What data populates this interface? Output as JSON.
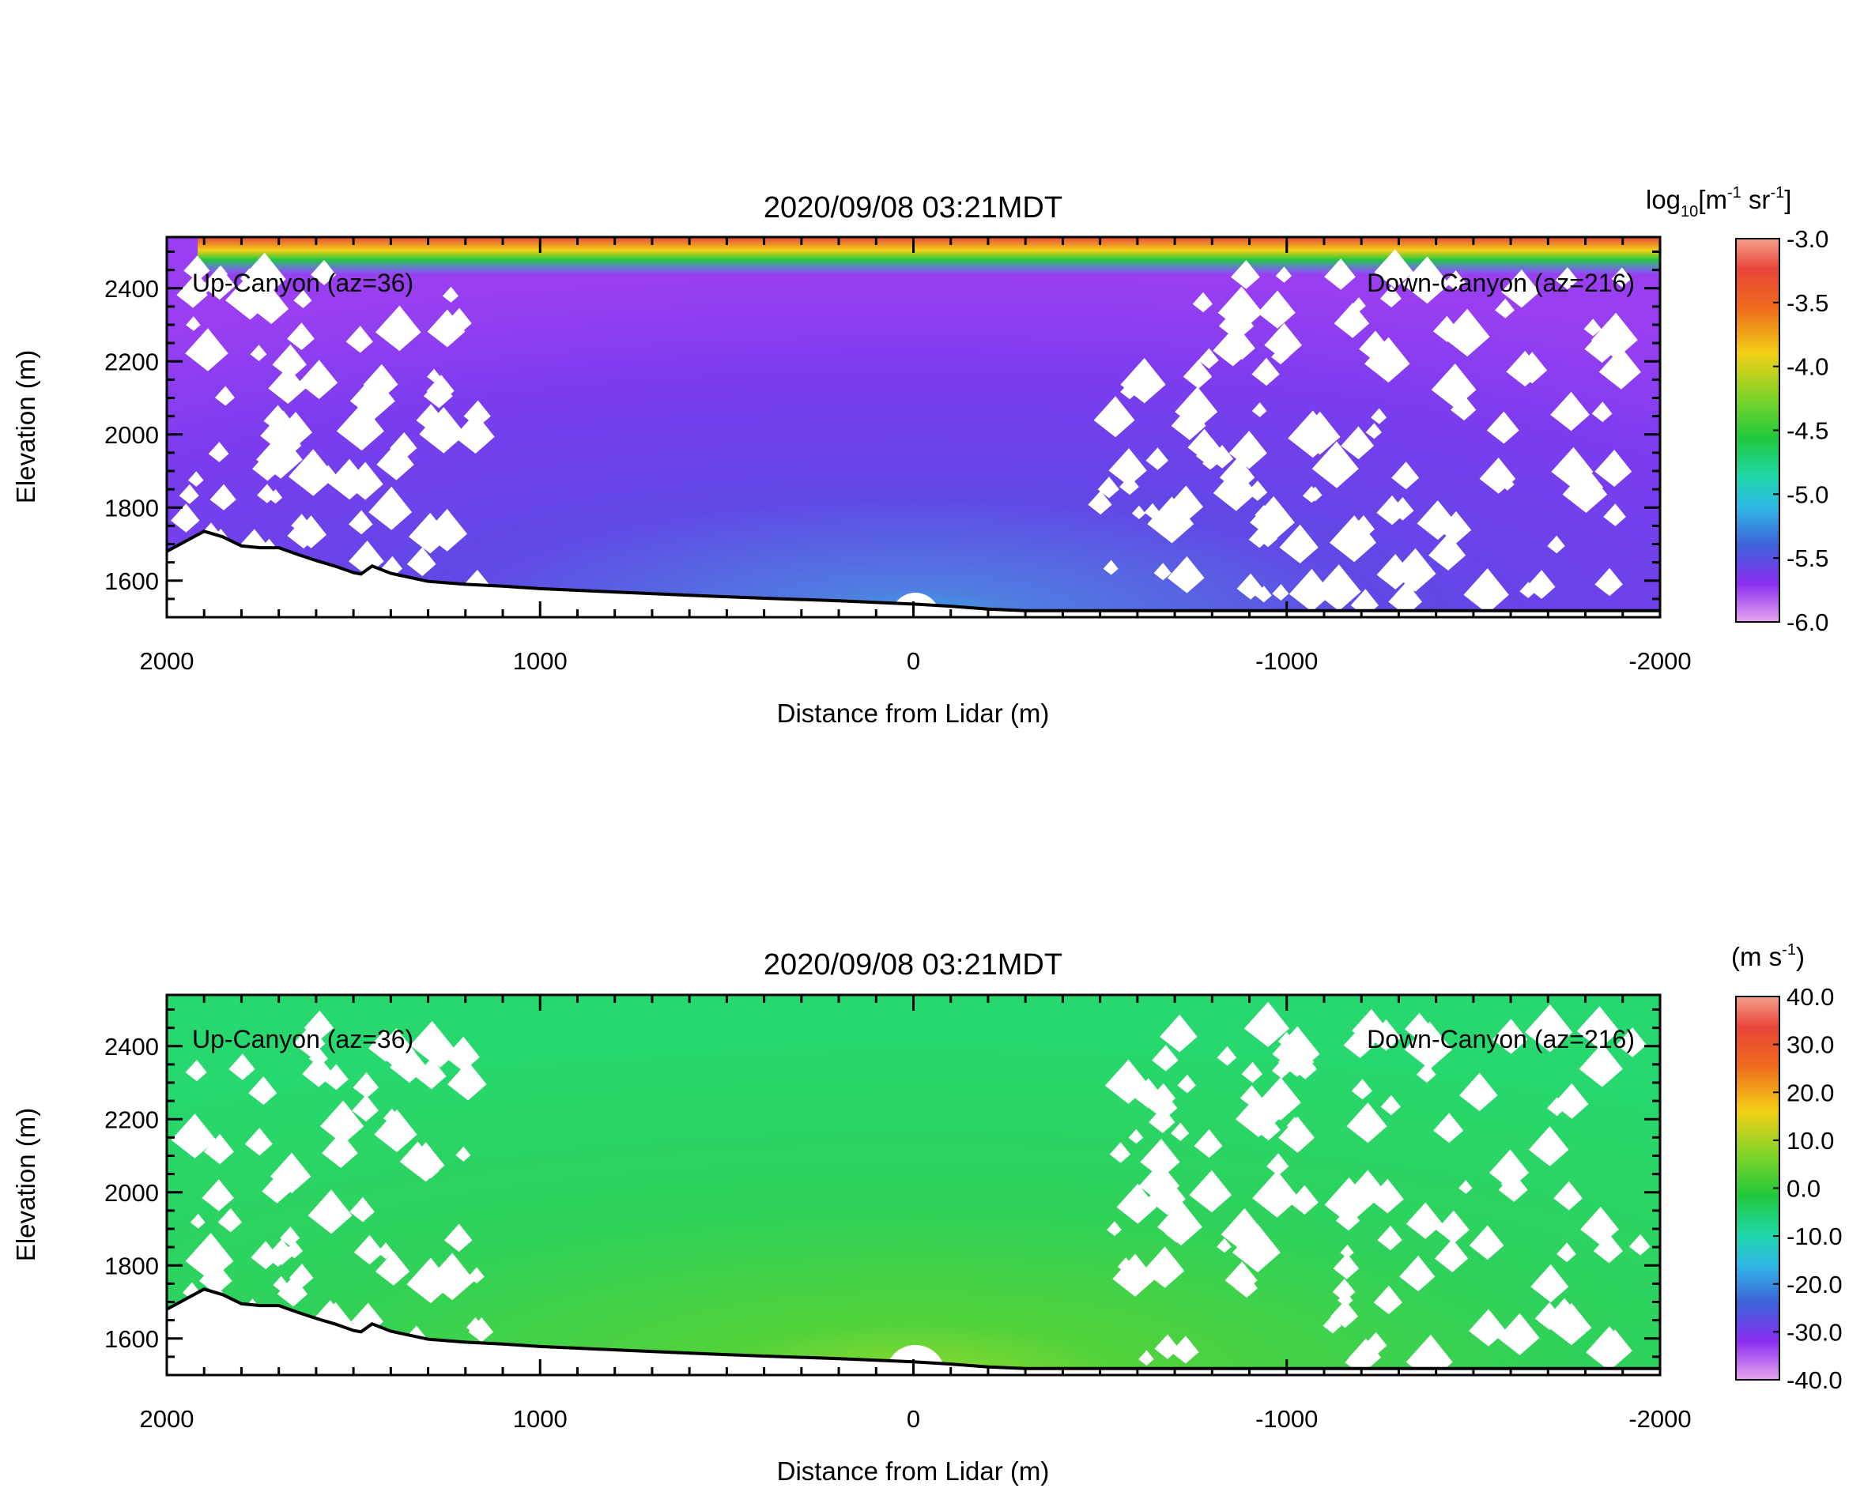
{
  "figure": {
    "background": "#ffffff"
  },
  "chart_data": [
    {
      "type": "heatmap",
      "title": "2020/09/08 03:21MDT",
      "xlabel": "Distance from Lidar (m)",
      "ylabel": "Elevation (m)",
      "xlim": [
        2000,
        -2000
      ],
      "ylim": [
        1500,
        2540
      ],
      "x_ticks": [
        2000,
        1000,
        0,
        -1000,
        -2000
      ],
      "x_tick_labels": [
        "2000",
        "1000",
        "0",
        "-1000",
        "-2000"
      ],
      "y_ticks": [
        1600,
        1800,
        2000,
        2200,
        2400
      ],
      "y_tick_labels": [
        "1600",
        "1800",
        "2000",
        "2200",
        "2400"
      ],
      "annotations": [
        "Up-Canyon (az=36)",
        "Down-Canyon (az=216)"
      ],
      "colorbar": {
        "label_base": "log",
        "label_sub": "10",
        "label_unit": "[m",
        "label_exp1": "-1",
        "label_mid": " sr",
        "label_exp2": "-1",
        "label_end": "]",
        "ticks": [
          "-3.0",
          "-3.5",
          "-4.0",
          "-4.5",
          "-5.0",
          "-5.5",
          "-6.0"
        ],
        "range": [
          -6.0,
          -3.0
        ]
      },
      "field": "backscatter",
      "background_value": -5.6,
      "top_band_value": -4.3
    },
    {
      "type": "heatmap",
      "title": "2020/09/08 03:21MDT",
      "xlabel": "Distance from Lidar (m)",
      "ylabel": "Elevation (m)",
      "xlim": [
        2000,
        -2000
      ],
      "ylim": [
        1500,
        2540
      ],
      "x_ticks": [
        2000,
        1000,
        0,
        -1000,
        -2000
      ],
      "x_tick_labels": [
        "2000",
        "1000",
        "0",
        "-1000",
        "-2000"
      ],
      "y_ticks": [
        1600,
        1800,
        2000,
        2200,
        2400
      ],
      "y_tick_labels": [
        "1600",
        "1800",
        "2000",
        "2200",
        "2400"
      ],
      "annotations": [
        "Up-Canyon (az=36)",
        "Down-Canyon (az=216)"
      ],
      "colorbar": {
        "label_base": "(m s",
        "label_exp1": "-1",
        "label_end": ")",
        "ticks": [
          "40.0",
          "30.0",
          "20.0",
          "10.0",
          "0.0",
          "-10.0",
          "-20.0",
          "-30.0",
          "-40.0"
        ],
        "range": [
          -40.0,
          40.0
        ]
      },
      "field": "radial_velocity",
      "background_value": 0.0
    }
  ],
  "terrain": {
    "x": [
      2000,
      1900,
      1850,
      1800,
      1750,
      1700,
      1650,
      1600,
      1550,
      1500,
      1480,
      1450,
      1400,
      1300,
      1200,
      1100,
      1000,
      800,
      600,
      400,
      200,
      0,
      -100,
      -200,
      -300
    ],
    "y": [
      1680,
      1735,
      1720,
      1695,
      1690,
      1690,
      1672,
      1655,
      1640,
      1622,
      1618,
      1640,
      1620,
      1598,
      1590,
      1585,
      1578,
      1569,
      1560,
      1552,
      1545,
      1536,
      1530,
      1522,
      1518
    ]
  }
}
